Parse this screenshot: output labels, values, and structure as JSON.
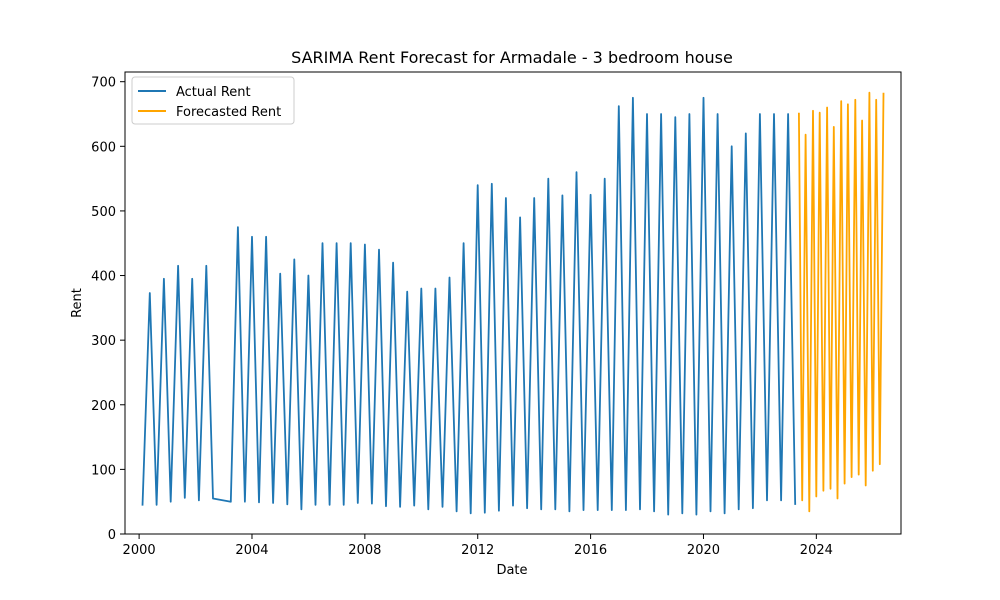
{
  "chart_data": {
    "type": "line",
    "title": "SARIMA Rent Forecast for Armadale - 3 bedroom house",
    "xlabel": "Date",
    "ylabel": "Rent",
    "xlim": [
      1999.5,
      2027.0
    ],
    "ylim": [
      0,
      715
    ],
    "xticks": [
      2000,
      2004,
      2008,
      2012,
      2016,
      2020,
      2024
    ],
    "yticks": [
      0,
      100,
      200,
      300,
      400,
      500,
      600,
      700
    ],
    "grid": false,
    "legend_placement": "top-left",
    "series": [
      {
        "name": "Actual Rent",
        "color": "#1f77b4",
        "x": [
          2000.12,
          2000.38,
          2000.62,
          2000.88,
          2001.12,
          2001.38,
          2001.62,
          2001.88,
          2002.12,
          2002.38,
          2002.62,
          2003.25,
          2003.5,
          2003.75,
          2004.0,
          2004.25,
          2004.5,
          2004.75,
          2005.0,
          2005.25,
          2005.5,
          2005.75,
          2006.0,
          2006.25,
          2006.5,
          2006.75,
          2007.0,
          2007.25,
          2007.5,
          2007.75,
          2008.0,
          2008.25,
          2008.5,
          2008.75,
          2009.0,
          2009.25,
          2009.5,
          2009.75,
          2010.0,
          2010.25,
          2010.5,
          2010.75,
          2011.0,
          2011.25,
          2011.5,
          2011.75,
          2012.0,
          2012.25,
          2012.5,
          2012.75,
          2013.0,
          2013.25,
          2013.5,
          2013.75,
          2014.0,
          2014.25,
          2014.5,
          2014.75,
          2015.0,
          2015.25,
          2015.5,
          2015.75,
          2016.0,
          2016.25,
          2016.5,
          2016.75,
          2017.0,
          2017.25,
          2017.5,
          2017.75,
          2018.0,
          2018.25,
          2018.5,
          2018.75,
          2019.0,
          2019.25,
          2019.5,
          2019.75,
          2020.0,
          2020.25,
          2020.5,
          2020.75,
          2021.0,
          2021.25,
          2021.5,
          2021.75,
          2022.0,
          2022.25,
          2022.5,
          2022.75,
          2023.0,
          2023.25
        ],
        "values": [
          44,
          373,
          45,
          395,
          50,
          415,
          56,
          395,
          52,
          415,
          55,
          50,
          475,
          50,
          460,
          49,
          460,
          48,
          403,
          46,
          425,
          38,
          400,
          45,
          450,
          45,
          450,
          45,
          450,
          48,
          448,
          47,
          440,
          43,
          420,
          42,
          375,
          44,
          380,
          38,
          380,
          42,
          397,
          35,
          450,
          32,
          540,
          33,
          542,
          36,
          520,
          44,
          490,
          40,
          520,
          38,
          550,
          38,
          524,
          35,
          560,
          37,
          525,
          37,
          550,
          37,
          662,
          37,
          675,
          38,
          650,
          35,
          650,
          30,
          645,
          32,
          650,
          30,
          675,
          35,
          650,
          32,
          600,
          38,
          620,
          40,
          650,
          52,
          650,
          52,
          650,
          45
        ]
      },
      {
        "name": "Forecasted Rent",
        "color": "#ffa500",
        "x": [
          2023.38,
          2023.5,
          2023.62,
          2023.75,
          2023.88,
          2024.0,
          2024.12,
          2024.25,
          2024.38,
          2024.5,
          2024.62,
          2024.75,
          2024.88,
          2025.0,
          2025.12,
          2025.25,
          2025.38,
          2025.5,
          2025.62,
          2025.75,
          2025.88,
          2026.0,
          2026.12,
          2026.25,
          2026.38
        ],
        "values": [
          652,
          52,
          618,
          35,
          655,
          58,
          652,
          67,
          660,
          70,
          630,
          55,
          670,
          78,
          665,
          88,
          672,
          92,
          640,
          75,
          683,
          98,
          672,
          108,
          683
        ]
      }
    ]
  }
}
